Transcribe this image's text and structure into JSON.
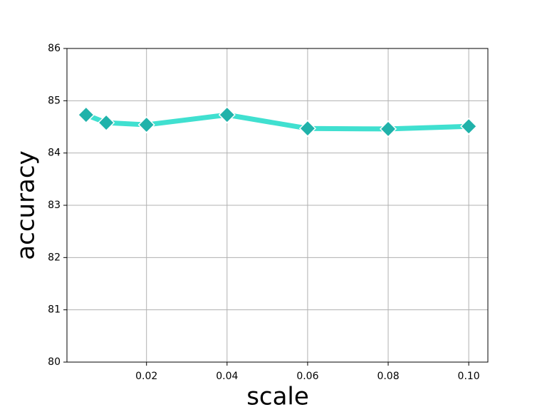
{
  "chart_data": {
    "type": "line",
    "xlabel": "scale",
    "ylabel": "accuracy",
    "x": [
      0.005,
      0.01,
      0.02,
      0.04,
      0.06,
      0.08,
      0.1
    ],
    "series": [
      {
        "color": "#40e0d0",
        "marker_color": "#20b2aa",
        "values": [
          84.73,
          84.58,
          84.54,
          84.73,
          84.47,
          84.46,
          84.51
        ]
      }
    ],
    "xlim": [
      0.00025,
      0.10475
    ],
    "xticks": [
      0.02,
      0.04,
      0.06,
      0.08,
      {
        "value": 0.1,
        "label": "0.10"
      }
    ],
    "ylim": [
      80,
      86
    ],
    "yticks": [
      80,
      81,
      82,
      83,
      84,
      85,
      86
    ],
    "grid": true
  }
}
